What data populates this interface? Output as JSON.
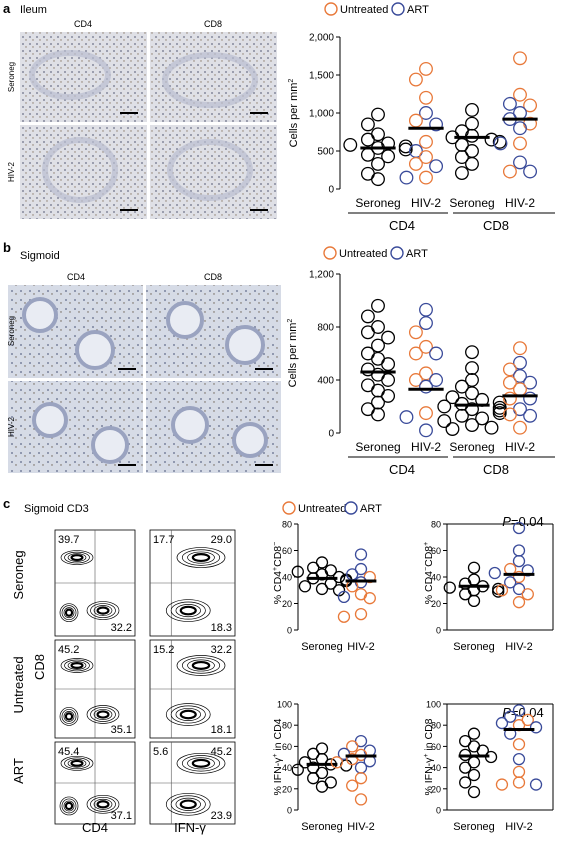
{
  "legend": {
    "untreated": "Untreated",
    "art": "ART"
  },
  "colors": {
    "untreated": "#e8793a",
    "art": "#3a4b9a"
  },
  "panel_a": {
    "letter": "a",
    "region": "Ileum",
    "img_cols": [
      "CD4",
      "CD8"
    ],
    "img_rows": [
      "Seroneg",
      "HIV-2"
    ],
    "ylabel_pre": "Cells per mm",
    "ylabel_sup": "2"
  },
  "panel_b": {
    "letter": "b",
    "region": "Sigmoid",
    "img_cols": [
      "CD4",
      "CD8"
    ],
    "img_rows": [
      "Seroneg",
      "HIV-2"
    ],
    "ylabel_pre": "Cells per mm",
    "ylabel_sup": "2"
  },
  "panel_c": {
    "letter": "c",
    "region": "Sigmoid CD3",
    "flow_rows": [
      "Seroneg",
      "Untreated",
      "ART"
    ],
    "flow_ylabel": "CD8",
    "flow_xlabels": [
      "CD4",
      "IFN-γ"
    ],
    "quadrants": [
      [
        [
          "39.7",
          "32.2"
        ],
        [
          "17.7",
          "29.0",
          "18.3"
        ]
      ],
      [
        [
          "45.2",
          "35.1"
        ],
        [
          "15.2",
          "32.2",
          "18.1"
        ]
      ],
      [
        [
          "45.4",
          "37.1"
        ],
        [
          "5.6",
          "45.2",
          "23.9"
        ]
      ]
    ],
    "pvalue_italic": "P",
    "pvalue_rest": "=0.04",
    "yl1": {
      "pre": "% CD4",
      "s1": "+",
      "mid": "CD8",
      "s2": "−"
    },
    "yl2": {
      "pre": "% CD4",
      "s1": "−",
      "mid": "CD8",
      "s2": "+"
    },
    "yl3": {
      "pre": "% IFN-γ",
      "s1": "+",
      "post": " in CD4"
    },
    "yl4": {
      "pre": "% IFN-γ",
      "s1": "+",
      "post": " in CD8"
    }
  },
  "chart_data": [
    {
      "id": "a",
      "type": "scatter",
      "title": "Ileum",
      "ylabel": "Cells per mm2",
      "ylim": [
        0,
        2000
      ],
      "yticks": [
        "0",
        "500",
        "1,000",
        "1,500",
        "2,000"
      ],
      "groups": [
        "Seroneg",
        "HIV-2",
        "Seroneg",
        "HIV-2"
      ],
      "supergroups": [
        "CD4",
        "CD8"
      ],
      "series": [
        {
          "group": 0,
          "kind": "seroneg",
          "values": [
            980,
            850,
            720,
            650,
            600,
            580,
            560,
            540,
            520,
            450,
            430,
            330,
            200,
            130
          ],
          "median": 540
        },
        {
          "group": 1,
          "kind": "untreated",
          "values": [
            1580,
            1440,
            1200,
            900,
            620,
            420,
            330,
            150
          ],
          "median": 800
        },
        {
          "group": 1,
          "kind": "art",
          "values": [
            1000,
            850,
            500,
            300,
            150
          ],
          "median": null
        },
        {
          "group": 2,
          "kind": "seroneg",
          "values": [
            1040,
            860,
            760,
            700,
            680,
            650,
            620,
            580,
            500,
            420,
            330,
            210
          ],
          "median": 680
        },
        {
          "group": 3,
          "kind": "untreated",
          "values": [
            1720,
            1240,
            1100,
            860,
            600,
            230
          ],
          "median": 920
        },
        {
          "group": 3,
          "kind": "art",
          "values": [
            1120,
            1000,
            920,
            800,
            600,
            350,
            230
          ],
          "median": null
        }
      ]
    },
    {
      "id": "b",
      "type": "scatter",
      "title": "Sigmoid",
      "ylabel": "Cells per mm2",
      "ylim": [
        0,
        1200
      ],
      "yticks": [
        "0",
        "400",
        "800",
        "1,200"
      ],
      "groups": [
        "Seroneg",
        "HIV-2",
        "Seroneg",
        "HIV-2"
      ],
      "supergroups": [
        "CD4",
        "CD8"
      ],
      "series": [
        {
          "group": 0,
          "kind": "seroneg",
          "values": [
            960,
            880,
            800,
            760,
            720,
            660,
            600,
            560,
            520,
            480,
            440,
            400,
            360,
            320,
            280,
            230,
            180,
            140
          ],
          "median": 460
        },
        {
          "group": 1,
          "kind": "untreated",
          "values": [
            760,
            650,
            600,
            450,
            400,
            150
          ],
          "median": 330
        },
        {
          "group": 1,
          "kind": "art",
          "values": [
            930,
            830,
            600,
            400,
            350,
            120,
            20
          ],
          "median": null
        },
        {
          "group": 2,
          "kind": "seroneg",
          "values": [
            610,
            490,
            400,
            350,
            300,
            270,
            250,
            230,
            220,
            200,
            190,
            180,
            170,
            150,
            130,
            110,
            90,
            60,
            40,
            30
          ],
          "median": 210
        },
        {
          "group": 3,
          "kind": "untreated",
          "values": [
            640,
            480,
            380,
            330,
            260,
            140,
            40
          ],
          "median": 280
        },
        {
          "group": 3,
          "kind": "art",
          "values": [
            530,
            430,
            380,
            260,
            180,
            130
          ],
          "median": null
        }
      ]
    },
    {
      "id": "c1",
      "type": "scatter",
      "ylim": [
        0,
        80
      ],
      "yticks": [
        "0",
        "20",
        "40",
        "60",
        "80"
      ],
      "groups": [
        "Seroneg",
        "HIV-2"
      ],
      "series": [
        {
          "group": 0,
          "kind": "seroneg",
          "values": [
            51,
            47,
            45,
            44,
            42,
            40,
            39,
            38,
            37,
            35,
            33,
            31,
            30
          ],
          "median": 39
        },
        {
          "group": 1,
          "kind": "untreated",
          "values": [
            40,
            33,
            27,
            24,
            12,
            10
          ],
          "median": 37
        },
        {
          "group": 1,
          "kind": "art",
          "values": [
            57,
            46,
            42,
            36,
            25
          ],
          "median": null
        }
      ]
    },
    {
      "id": "c2",
      "type": "scatter",
      "ylim": [
        0,
        80
      ],
      "yticks": [
        "0",
        "20",
        "40",
        "60",
        "80"
      ],
      "pvalue": "P=0.04",
      "groups": [
        "Seroneg",
        "HIV-2"
      ],
      "series": [
        {
          "group": 0,
          "kind": "seroneg",
          "values": [
            47,
            38,
            35,
            33,
            32,
            31,
            30,
            29,
            27,
            22
          ],
          "median": 33
        },
        {
          "group": 1,
          "kind": "untreated",
          "values": [
            46,
            40,
            30,
            27,
            21
          ],
          "median": 42
        },
        {
          "group": 1,
          "kind": "art",
          "values": [
            77,
            60,
            52,
            45,
            43,
            36,
            31
          ],
          "median": null
        }
      ]
    },
    {
      "id": "c3",
      "type": "scatter",
      "ylim": [
        0,
        100
      ],
      "yticks": [
        "0",
        "20",
        "40",
        "60",
        "80",
        "100"
      ],
      "groups": [
        "Seroneg",
        "HIV-2"
      ],
      "series": [
        {
          "group": 0,
          "kind": "seroneg",
          "values": [
            58,
            53,
            48,
            45,
            43,
            42,
            40,
            38,
            35,
            30,
            26,
            22
          ],
          "median": 43
        },
        {
          "group": 1,
          "kind": "untreated",
          "values": [
            60,
            52,
            48,
            45,
            30,
            23,
            10
          ],
          "median": 51
        },
        {
          "group": 1,
          "kind": "art",
          "values": [
            65,
            56,
            53,
            46,
            40
          ],
          "median": null
        }
      ]
    },
    {
      "id": "c4",
      "type": "scatter",
      "ylim": [
        0,
        100
      ],
      "yticks": [
        "0",
        "20",
        "40",
        "60",
        "80",
        "100"
      ],
      "pvalue": "P=0.04",
      "groups": [
        "Seroneg",
        "HIV-2"
      ],
      "series": [
        {
          "group": 0,
          "kind": "seroneg",
          "values": [
            72,
            65,
            60,
            56,
            52,
            50,
            45,
            40,
            33,
            26,
            17
          ],
          "median": 51
        },
        {
          "group": 1,
          "kind": "untreated",
          "values": [
            85,
            80,
            62,
            36,
            26,
            24
          ],
          "median": 76
        },
        {
          "group": 1,
          "kind": "art",
          "values": [
            94,
            88,
            82,
            78,
            72,
            48,
            24
          ],
          "median": null
        }
      ]
    }
  ]
}
